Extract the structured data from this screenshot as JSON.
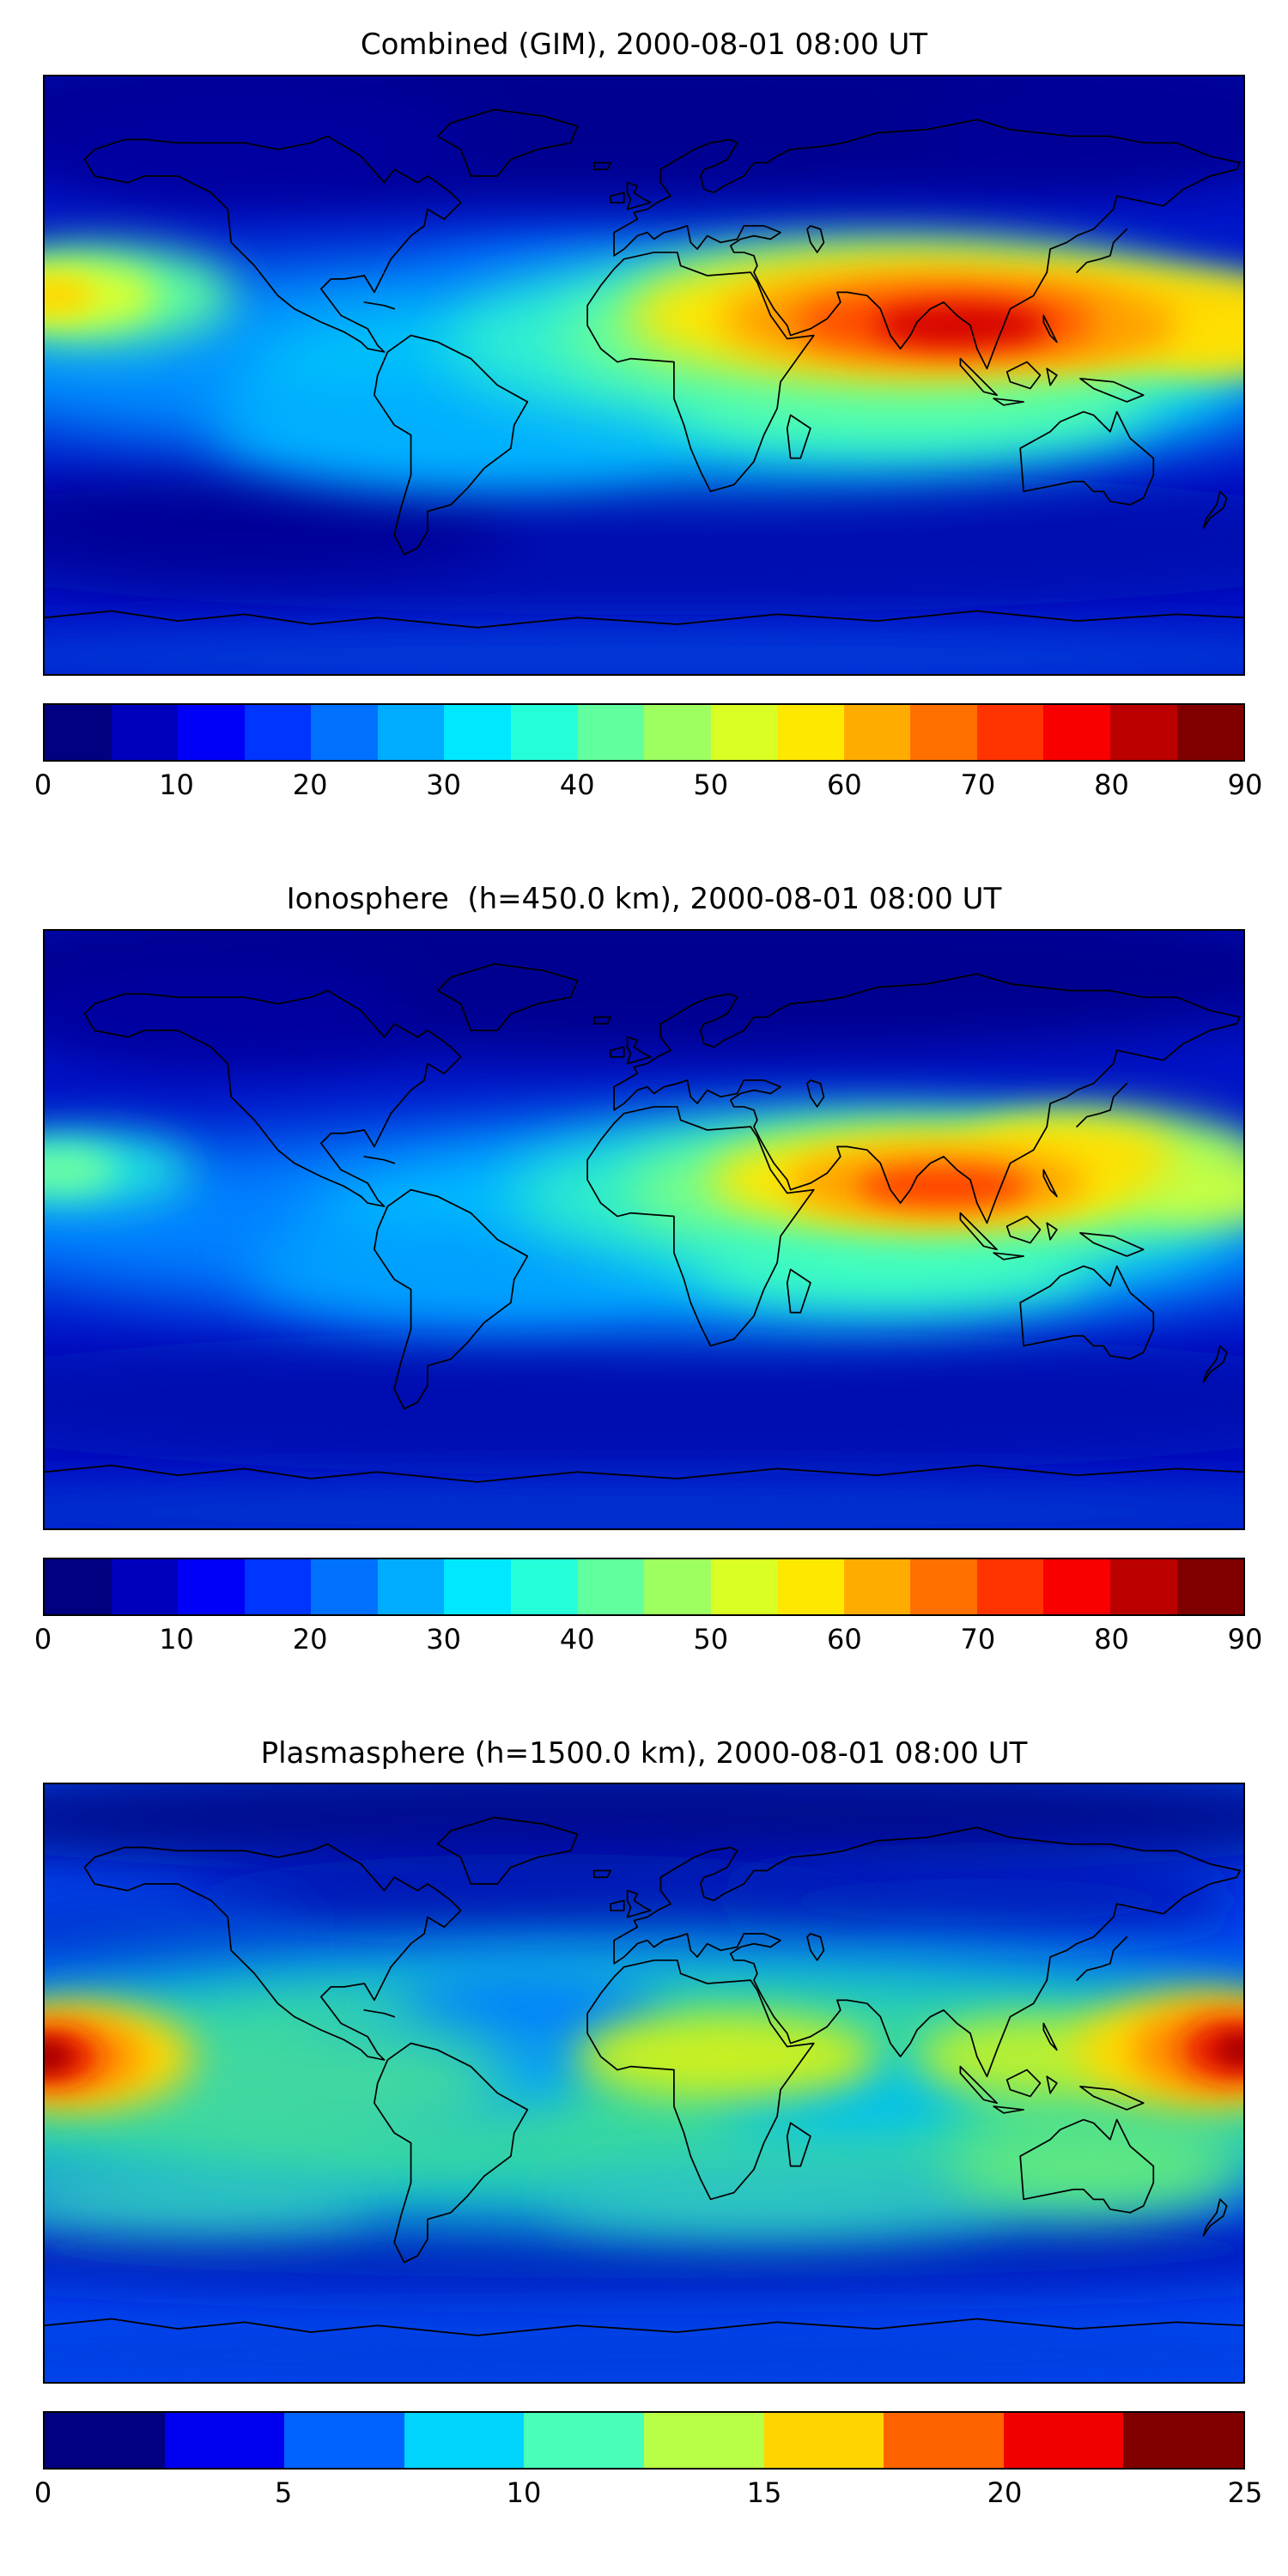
{
  "page": {
    "background": "#ffffff"
  },
  "chart_data": {
    "note": "see charts array",
    "n_charts": 3
  },
  "charts": [
    {
      "type": "heatmap",
      "title": "Combined (GIM), 2000-08-01 08:00 UT",
      "projection": "equirectangular",
      "lon_range": [
        -180,
        180
      ],
      "lat_range": [
        -90,
        90
      ],
      "colormap": "jet",
      "value_range": [
        0,
        90
      ],
      "n_levels": 18,
      "colorbar": {
        "ticks": [
          0,
          10,
          20,
          30,
          40,
          50,
          60,
          70,
          80,
          90
        ],
        "colors": [
          "#000080",
          "#0000bc",
          "#0000f8",
          "#0034ff",
          "#0070ff",
          "#00acff",
          "#00e8ff",
          "#25ffd9",
          "#61ff9e",
          "#9eff61",
          "#daff25",
          "#ffe800",
          "#ffac00",
          "#ff7000",
          "#ff3400",
          "#f80000",
          "#bb0000",
          "#800000"
        ]
      },
      "peak": {
        "value_estimate": 88,
        "lon": 95,
        "lat": 15
      },
      "secondary_peak": {
        "value_estimate": 55,
        "lon": -178,
        "lat": 24
      },
      "grid_estimate": {
        "lats": [
          60,
          30,
          0,
          -30,
          -60
        ],
        "lons": [
          -150,
          -90,
          -30,
          30,
          90,
          150
        ],
        "values": [
          [
            12,
            10,
            8,
            12,
            18,
            15
          ],
          [
            35,
            15,
            15,
            35,
            70,
            45
          ],
          [
            30,
            25,
            28,
            45,
            55,
            40
          ],
          [
            15,
            12,
            15,
            25,
            30,
            22
          ],
          [
            8,
            8,
            10,
            12,
            12,
            10
          ]
        ]
      },
      "background": "#0013c8",
      "features": [
        {
          "lon": 0,
          "lat": 78,
          "rx": 220,
          "ry": 26,
          "color": "#000090",
          "blur": 8
        },
        {
          "lon": -120,
          "lat": 70,
          "rx": 70,
          "ry": 18,
          "color": "#0000a0",
          "blur": 8
        },
        {
          "lon": 140,
          "lat": 75,
          "rx": 60,
          "ry": 16,
          "color": "#000098",
          "blur": 8
        },
        {
          "lon": 0,
          "lat": -50,
          "rx": 230,
          "ry": 22,
          "color": "#0008b0",
          "blur": 8
        },
        {
          "lon": -120,
          "lat": -45,
          "rx": 80,
          "ry": 16,
          "color": "#000098",
          "blur": 8
        },
        {
          "lon": 0,
          "lat": -85,
          "rx": 230,
          "ry": 10,
          "color": "#0038d8",
          "blur": 6
        },
        {
          "lon": 0,
          "lat": 5,
          "rx": 235,
          "ry": 32,
          "color": "#0090ff",
          "blur": 10
        },
        {
          "lon": -30,
          "lat": 25,
          "rx": 40,
          "ry": 12,
          "color": "#0060ff",
          "blur": 8
        },
        {
          "lon": 30,
          "lat": 0,
          "rx": 150,
          "ry": 28,
          "color": "#00c8f8",
          "blur": 10
        },
        {
          "lon": -60,
          "lat": -15,
          "rx": 70,
          "ry": 18,
          "color": "#00b0ff",
          "blur": 8
        },
        {
          "lon": 60,
          "lat": 10,
          "rx": 120,
          "ry": 26,
          "color": "#30f0d0",
          "blur": 9
        },
        {
          "lon": 75,
          "lat": 12,
          "rx": 100,
          "ry": 22,
          "color": "#70ff90",
          "blur": 8
        },
        {
          "lon": 80,
          "lat": -8,
          "rx": 70,
          "ry": 14,
          "color": "#50ffb0",
          "blur": 8
        },
        {
          "lon": -165,
          "lat": 24,
          "rx": 42,
          "ry": 15,
          "color": "#60ff9e",
          "blur": 7
        },
        {
          "lon": -172,
          "lat": 24,
          "rx": 26,
          "ry": 10,
          "color": "#d8ff30",
          "blur": 5
        },
        {
          "lon": -178,
          "lat": 24,
          "rx": 13,
          "ry": 6,
          "color": "#ffd800",
          "blur": 4
        },
        {
          "lon": 170,
          "lat": 15,
          "rx": 30,
          "ry": 12,
          "color": "#b0ff50",
          "blur": 6
        },
        {
          "lon": 80,
          "lat": 18,
          "rx": 85,
          "ry": 20,
          "color": "#ffe800",
          "blur": 7
        },
        {
          "lon": 150,
          "lat": 18,
          "rx": 45,
          "ry": 13,
          "color": "#ffd000",
          "blur": 6
        },
        {
          "lon": 178,
          "lat": 12,
          "rx": 25,
          "ry": 10,
          "color": "#ffe000",
          "blur": 6
        },
        {
          "lon": 85,
          "lat": 17,
          "rx": 62,
          "ry": 14,
          "color": "#ff9800",
          "blur": 6
        },
        {
          "lon": 130,
          "lat": 15,
          "rx": 30,
          "ry": 9,
          "color": "#ffa000",
          "blur": 5
        },
        {
          "lon": 90,
          "lat": 16,
          "rx": 45,
          "ry": 10,
          "color": "#ff4800",
          "blur": 5
        },
        {
          "lon": 95,
          "lat": 15,
          "rx": 26,
          "ry": 6,
          "color": "#d40000",
          "blur": 4
        }
      ]
    },
    {
      "type": "heatmap",
      "title": "Ionosphere  (h=450.0 km), 2000-08-01 08:00 UT",
      "projection": "equirectangular",
      "lon_range": [
        -180,
        180
      ],
      "lat_range": [
        -90,
        90
      ],
      "colormap": "jet",
      "value_range": [
        0,
        90
      ],
      "n_levels": 18,
      "colorbar": {
        "ticks": [
          0,
          10,
          20,
          30,
          40,
          50,
          60,
          70,
          80,
          90
        ],
        "colors": [
          "#000080",
          "#0000bc",
          "#0000f8",
          "#0034ff",
          "#0070ff",
          "#00acff",
          "#00e8ff",
          "#25ffd9",
          "#61ff9e",
          "#9eff61",
          "#daff25",
          "#ffe800",
          "#ffac00",
          "#ff7000",
          "#ff3400",
          "#f80000",
          "#bb0000",
          "#800000"
        ]
      },
      "peak": {
        "value_estimate": 70,
        "lon": 90,
        "lat": 13
      },
      "secondary_peak": {
        "value_estimate": 40,
        "lon": -176,
        "lat": 18
      },
      "grid_estimate": {
        "lats": [
          60,
          30,
          0,
          -30,
          -60
        ],
        "lons": [
          -150,
          -90,
          -30,
          30,
          90,
          150
        ],
        "values": [
          [
            8,
            8,
            6,
            10,
            14,
            12
          ],
          [
            22,
            10,
            12,
            28,
            55,
            38
          ],
          [
            20,
            18,
            20,
            35,
            45,
            32
          ],
          [
            10,
            8,
            12,
            20,
            25,
            18
          ],
          [
            6,
            6,
            8,
            10,
            10,
            8
          ]
        ]
      },
      "background": "#0013c8",
      "features": [
        {
          "lon": 0,
          "lat": 78,
          "rx": 220,
          "ry": 26,
          "color": "#000090",
          "blur": 8
        },
        {
          "lon": -130,
          "lat": 65,
          "rx": 60,
          "ry": 16,
          "color": "#0000a0",
          "blur": 8
        },
        {
          "lon": 0,
          "lat": -52,
          "rx": 230,
          "ry": 22,
          "color": "#0008b0",
          "blur": 8
        },
        {
          "lon": 0,
          "lat": -85,
          "rx": 230,
          "ry": 10,
          "color": "#0030d0",
          "blur": 6
        },
        {
          "lon": 10,
          "lat": 2,
          "rx": 235,
          "ry": 30,
          "color": "#0080ff",
          "blur": 10
        },
        {
          "lon": 40,
          "lat": 2,
          "rx": 140,
          "ry": 26,
          "color": "#00c0ff",
          "blur": 10
        },
        {
          "lon": -60,
          "lat": -12,
          "rx": 60,
          "ry": 15,
          "color": "#00a0ff",
          "blur": 8
        },
        {
          "lon": 70,
          "lat": 10,
          "rx": 110,
          "ry": 22,
          "color": "#30f0c8",
          "blur": 9
        },
        {
          "lon": 80,
          "lat": 12,
          "rx": 85,
          "ry": 18,
          "color": "#80ff80",
          "blur": 8
        },
        {
          "lon": 75,
          "lat": -10,
          "rx": 60,
          "ry": 13,
          "color": "#40ffc0",
          "blur": 8
        },
        {
          "lon": -170,
          "lat": 18,
          "rx": 35,
          "ry": 11,
          "color": "#20e8e0",
          "blur": 7
        },
        {
          "lon": -176,
          "lat": 18,
          "rx": 18,
          "ry": 7,
          "color": "#70ffa0",
          "blur": 5
        },
        {
          "lon": 140,
          "lat": 20,
          "rx": 45,
          "ry": 14,
          "color": "#a8ff58",
          "blur": 7
        },
        {
          "lon": 172,
          "lat": 12,
          "rx": 25,
          "ry": 10,
          "color": "#c8ff40",
          "blur": 6
        },
        {
          "lon": 85,
          "lat": 15,
          "rx": 65,
          "ry": 15,
          "color": "#ffe800",
          "blur": 6
        },
        {
          "lon": 130,
          "lat": 22,
          "rx": 30,
          "ry": 10,
          "color": "#ffe000",
          "blur": 6
        },
        {
          "lon": 88,
          "lat": 14,
          "rx": 45,
          "ry": 11,
          "color": "#ffa000",
          "blur": 5
        },
        {
          "lon": 90,
          "lat": 13,
          "rx": 26,
          "ry": 6,
          "color": "#ff4000",
          "blur": 4
        }
      ]
    },
    {
      "type": "heatmap",
      "title": "Plasmasphere (h=1500.0 km), 2000-08-01 08:00 UT",
      "projection": "equirectangular",
      "lon_range": [
        -180,
        180
      ],
      "lat_range": [
        -90,
        90
      ],
      "colormap": "jet",
      "value_range": [
        0,
        25
      ],
      "n_levels": 10,
      "colorbar": {
        "ticks": [
          0,
          5,
          10,
          15,
          20,
          25
        ],
        "colors": [
          "#000080",
          "#0000f1",
          "#0063ff",
          "#00d4ff",
          "#47ffb8",
          "#b8ff47",
          "#ffd400",
          "#ff6300",
          "#f10000",
          "#800000"
        ]
      },
      "peak": {
        "value_estimate": 24,
        "lon": -180,
        "lat": 8
      },
      "secondary_peak": {
        "value_estimate": 24,
        "lon": 180,
        "lat": 10
      },
      "grid_estimate": {
        "lats": [
          60,
          30,
          0,
          -30,
          -60
        ],
        "lons": [
          -150,
          -90,
          -30,
          30,
          90,
          150
        ],
        "values": [
          [
            4,
            3,
            3,
            4,
            5,
            6
          ],
          [
            10,
            8,
            5,
            8,
            10,
            12
          ],
          [
            22,
            12,
            10,
            16,
            12,
            20
          ],
          [
            12,
            10,
            9,
            10,
            11,
            13
          ],
          [
            4,
            4,
            4,
            4,
            4,
            5
          ]
        ]
      },
      "background": "#0045f0",
      "features": [
        {
          "lon": 0,
          "lat": 80,
          "rx": 230,
          "ry": 18,
          "color": "#000890",
          "blur": 8
        },
        {
          "lon": -30,
          "lat": 55,
          "rx": 110,
          "ry": 14,
          "color": "#0010b0",
          "blur": 8
        },
        {
          "lon": 100,
          "lat": 55,
          "rx": 80,
          "ry": 12,
          "color": "#0018b8",
          "blur": 8
        },
        {
          "lon": -150,
          "lat": 45,
          "rx": 50,
          "ry": 12,
          "color": "#0030d0",
          "blur": 8
        },
        {
          "lon": 0,
          "lat": -50,
          "rx": 230,
          "ry": 14,
          "color": "#0018b8",
          "blur": 8
        },
        {
          "lon": 0,
          "lat": -82,
          "rx": 230,
          "ry": 9,
          "color": "#0040e0",
          "blur": 6
        },
        {
          "lon": 0,
          "lat": 0,
          "rx": 240,
          "ry": 42,
          "color": "#00b4e8",
          "blur": 12
        },
        {
          "lon": 0,
          "lat": -2,
          "rx": 240,
          "ry": 32,
          "color": "#38d8a0",
          "blur": 10
        },
        {
          "lon": -60,
          "lat": 5,
          "rx": 45,
          "ry": 14,
          "color": "#00a0ff",
          "blur": 8
        },
        {
          "lon": -35,
          "lat": 22,
          "rx": 40,
          "ry": 12,
          "color": "#0080ff",
          "blur": 8
        },
        {
          "lon": 60,
          "lat": -5,
          "rx": 40,
          "ry": 12,
          "color": "#00c0f0",
          "blur": 8
        },
        {
          "lon": -140,
          "lat": -35,
          "rx": 60,
          "ry": 10,
          "color": "#30c8c0",
          "blur": 8
        },
        {
          "lon": 40,
          "lat": -35,
          "rx": 70,
          "ry": 10,
          "color": "#30c8c0",
          "blur": 8
        },
        {
          "lon": -100,
          "lat": 0,
          "rx": 60,
          "ry": 20,
          "color": "#40d8a0",
          "blur": 9
        },
        {
          "lon": 135,
          "lat": -25,
          "rx": 45,
          "ry": 14,
          "color": "#60e880",
          "blur": 8
        },
        {
          "lon": 25,
          "lat": 8,
          "rx": 45,
          "ry": 13,
          "color": "#c8f020",
          "blur": 6
        },
        {
          "lon": 120,
          "lat": 8,
          "rx": 38,
          "ry": 12,
          "color": "#b8f030",
          "blur": 6
        },
        {
          "lon": -170,
          "lat": 8,
          "rx": 35,
          "ry": 16,
          "color": "#ffd800",
          "blur": 6
        },
        {
          "lon": -175,
          "lat": 8,
          "rx": 24,
          "ry": 12,
          "color": "#ff8800",
          "blur": 5
        },
        {
          "lon": -178,
          "lat": 8,
          "rx": 14,
          "ry": 8,
          "color": "#e81800",
          "blur": 4
        },
        {
          "lon": -180,
          "lat": 8,
          "rx": 8,
          "ry": 5,
          "color": "#a80000",
          "blur": 3
        },
        {
          "lon": 168,
          "lat": 10,
          "rx": 38,
          "ry": 17,
          "color": "#ffd800",
          "blur": 6
        },
        {
          "lon": 173,
          "lat": 10,
          "rx": 26,
          "ry": 13,
          "color": "#ff8800",
          "blur": 5
        },
        {
          "lon": 177,
          "lat": 10,
          "rx": 15,
          "ry": 9,
          "color": "#e81800",
          "blur": 4
        },
        {
          "lon": 180,
          "lat": 10,
          "rx": 8,
          "ry": 5,
          "color": "#a80000",
          "blur": 3
        }
      ]
    }
  ]
}
